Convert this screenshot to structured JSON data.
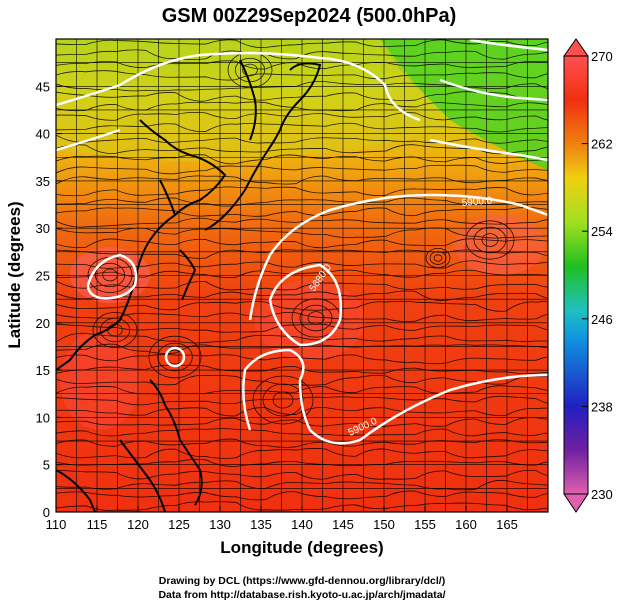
{
  "title": "GSM 00Z29Sep2024 (500.0hPa)",
  "axes": {
    "xlabel": "Longitude (degrees)",
    "ylabel": "Latitude  (degrees)",
    "x_ticks": [
      "110",
      "115",
      "120",
      "125",
      "130",
      "135",
      "140",
      "145",
      "150",
      "155",
      "160",
      "165"
    ],
    "y_ticks": [
      "0",
      "5",
      "10",
      "15",
      "20",
      "25",
      "30",
      "35",
      "40",
      "45"
    ],
    "x_range": [
      110,
      170
    ],
    "y_range": [
      0,
      50
    ]
  },
  "colorbar": {
    "tick_labels": [
      "270",
      "262",
      "254",
      "246",
      "238",
      "230"
    ],
    "range": [
      230,
      270
    ],
    "colors": [
      "#e060b0",
      "#7020a0",
      "#2020c0",
      "#1090e0",
      "#20c0c0",
      "#20c020",
      "#a0e020",
      "#f0d010",
      "#f08010",
      "#f03010",
      "#ff5050"
    ]
  },
  "contour_labels": [
    "5900.0",
    "5880.0",
    "5900.0"
  ],
  "credits": {
    "line1": "Drawing by DCL (https://www.gfd-dennou.org/library/dcl/)",
    "line2": "Data from http://database.rish.kyoto-u.ac.jp/arch/jmadata/"
  },
  "colors": {
    "warm": "#f03a10",
    "orange": "#f07010",
    "yellow": "#e8c010",
    "green": "#60d820",
    "land": "#000000",
    "contour": "#ffffff"
  }
}
